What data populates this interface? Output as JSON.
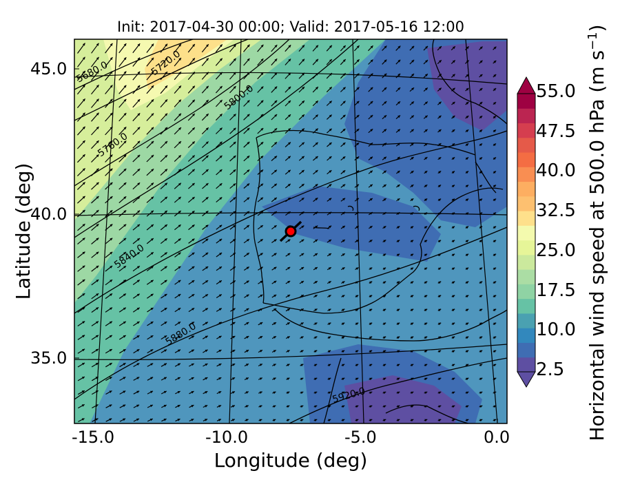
{
  "title": "Init: 2017-04-30 00:00; Valid: 2017-05-16 12:00",
  "x_axis": {
    "label": "Longitude (deg)",
    "ticks": [
      "-15.0",
      "-10.0",
      "-5.0",
      "0.0"
    ]
  },
  "y_axis": {
    "label": "Latitude (deg)",
    "ticks": [
      "45.0",
      "40.0",
      "35.0"
    ]
  },
  "colorbar": {
    "label_main": "Horizontal wind speed at 500.0 hPa (m s",
    "label_exp": "−1",
    "label_close": ")",
    "ticks": [
      "55.0",
      "47.5",
      "40.0",
      "32.5",
      "25.0",
      "17.5",
      "10.0",
      "2.5"
    ],
    "min": 2.5,
    "max": 55.0,
    "colormap": "Spectral_r",
    "extend": "both",
    "colors": [
      "#5e4fa2",
      "#3f6db3",
      "#3288bd",
      "#4aa1b1",
      "#66c2a5",
      "#8fd3a4",
      "#abdda4",
      "#cbe99d",
      "#e6f598",
      "#f4faae",
      "#fee08b",
      "#fdc070",
      "#fdae61",
      "#f98e52",
      "#f46d43",
      "#e55a49",
      "#d53e4f",
      "#bb2551",
      "#9e0142"
    ]
  },
  "contours": {
    "variable": "geopotential height",
    "labels": [
      "5680.0",
      "5720.0",
      "5760.0",
      "5800.0",
      "5840.0",
      "5880.0",
      "5920.0"
    ]
  },
  "marker": {
    "color": "#ff0000"
  },
  "colors": {
    "land_outline": "#000000",
    "wind_arrows": "#000000"
  }
}
